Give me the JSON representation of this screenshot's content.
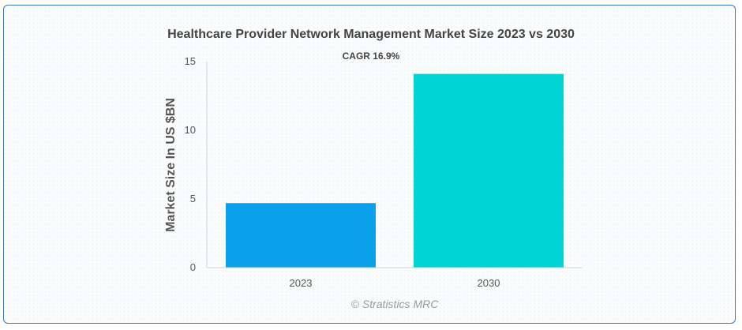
{
  "chart_data": {
    "type": "bar",
    "title": "Healthcare Provider Network Management Market Size 2023 vs 2030",
    "annotation": "CAGR 16.9%",
    "xlabel": "",
    "ylabel": "Market Size In US $BN",
    "categories": [
      "2023",
      "2030"
    ],
    "values": [
      4.7,
      14.1
    ],
    "ylim": [
      0,
      15
    ],
    "yticks": [
      0,
      5,
      10,
      15
    ],
    "colors": [
      "#0aa0ec",
      "#00d4d4"
    ],
    "grid": false,
    "legend": "none"
  },
  "credit": "© Stratistics MRC"
}
